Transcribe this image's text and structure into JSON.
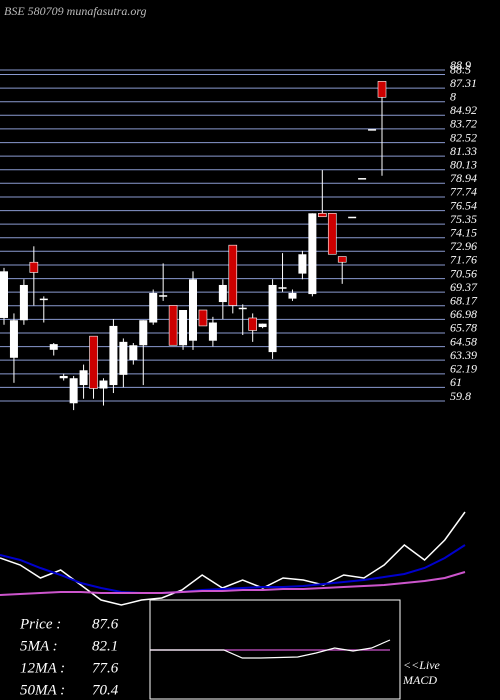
{
  "chart_data": [
    {
      "type": "candlestick",
      "title": "BSE 580709 munafasutra.org",
      "ylim": [
        59.8,
        88.9
      ],
      "yticks": [
        59.8,
        61,
        62.19,
        63.39,
        64.58,
        65.78,
        66.98,
        68.17,
        69.37,
        70.56,
        71.76,
        72.96,
        74.15,
        75.35,
        76.54,
        77.74,
        78.94,
        80.13,
        81.33,
        82.52,
        83.72,
        84.92,
        {
          "value": 86.11,
          "label": "8"
        },
        87.31,
        88.5,
        88.9
      ],
      "grid": true,
      "up_color": "#ffffff",
      "down_color": "#cc0000",
      "open": [
        67.1,
        63.6,
        66.9,
        72.0,
        68.8,
        64.3,
        61.8,
        59.6,
        61.2,
        65.5,
        60.9,
        61.2,
        62.1,
        63.4,
        64.7,
        66.7,
        69.1,
        68.2,
        64.7,
        65.1,
        67.8,
        65.1,
        68.5,
        73.5,
        68.0,
        67.1,
        66.3,
        64.1,
        69.8,
        68.8,
        71.0,
        69.2,
        76.3,
        76.3,
        72.5,
        76.0,
        79.4,
        83.7,
        87.9
      ],
      "high": [
        71.5,
        67.5,
        70.5,
        73.4,
        69.0,
        64.9,
        62.2,
        62.0,
        63.0,
        65.5,
        61.8,
        67.0,
        65.3,
        64.9,
        66.9,
        69.6,
        71.9,
        68.2,
        67.8,
        71.2,
        67.8,
        67.2,
        70.5,
        73.5,
        68.3,
        67.5,
        66.6,
        70.5,
        72.8,
        69.6,
        73.0,
        76.3,
        80.1,
        76.3,
        72.5,
        76.0,
        79.4,
        83.7,
        87.9
      ],
      "low": [
        66.5,
        61.4,
        66.5,
        68.2,
        66.7,
        63.8,
        61.6,
        59.0,
        60.0,
        60.0,
        59.4,
        60.5,
        61.0,
        63.0,
        61.2,
        66.5,
        68.6,
        64.7,
        64.3,
        64.3,
        66.4,
        64.6,
        67.0,
        67.5,
        65.6,
        65.0,
        66.2,
        63.5,
        69.4,
        68.6,
        70.5,
        69.0,
        76.0,
        72.7,
        70.1,
        76.0,
        79.4,
        83.7,
        79.6
      ],
      "close": [
        71.2,
        66.9,
        70.0,
        71.1,
        68.8,
        64.8,
        62.0,
        61.8,
        62.5,
        60.9,
        61.6,
        66.4,
        65.0,
        64.7,
        66.9,
        69.3,
        69.1,
        64.7,
        67.8,
        70.5,
        66.4,
        66.7,
        70.0,
        68.2,
        68.0,
        66.0,
        66.6,
        70.0,
        69.8,
        69.3,
        72.7,
        76.3,
        76.0,
        72.7,
        72.0,
        76.0,
        79.4,
        83.7,
        86.5
      ]
    },
    {
      "type": "line",
      "ylim": [
        -10,
        100
      ],
      "series": [
        {
          "color": "#ffffff",
          "values": [
            42,
            35,
            22,
            30,
            15,
            0,
            -5,
            0,
            2,
            10,
            25,
            12,
            20,
            12,
            22,
            20,
            15,
            25,
            22,
            35,
            55,
            40,
            60,
            88
          ]
        },
        {
          "color": "#0000cc",
          "values": [
            45,
            40,
            32,
            25,
            17,
            12,
            8,
            7,
            7,
            8,
            10,
            11,
            12,
            13,
            13,
            14,
            16,
            18,
            20,
            23,
            26,
            32,
            42,
            55
          ]
        },
        {
          "color": "#cc55cc",
          "values": [
            5,
            6,
            7,
            8,
            8,
            7,
            7,
            7,
            7,
            8,
            9,
            9,
            10,
            10,
            11,
            11,
            12,
            13,
            14,
            15,
            17,
            19,
            22,
            28
          ]
        }
      ],
      "stats": [
        {
          "label": "Price  :",
          "value": 87.6
        },
        {
          "label": "5MA :",
          "value": 82.1
        },
        {
          "label": "12MA :",
          "value": 77.6
        },
        {
          "label": "50MA :",
          "value": 70.4
        }
      ]
    },
    {
      "type": "macd",
      "ylim": [
        -10,
        10
      ],
      "label": "<<Live",
      "label2": "MACD",
      "series": [
        {
          "color": "#ffffff",
          "values": [
            0,
            0,
            0,
            0,
            0,
            -1.6,
            -1.6,
            -1.5,
            -1.4,
            -0.6,
            0.4,
            -0.2,
            0.4,
            2
          ]
        },
        {
          "color": "#cc55cc",
          "values": [
            0,
            0,
            0,
            0,
            0,
            0,
            0,
            0,
            0,
            0,
            0,
            0,
            0,
            0
          ]
        }
      ]
    }
  ]
}
